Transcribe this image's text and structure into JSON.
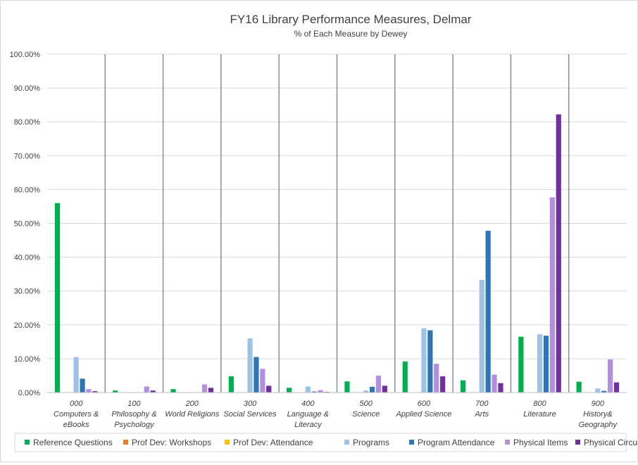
{
  "chart_data": {
    "type": "bar",
    "title": "FY16 Library Performance Measures, Delmar",
    "subtitle": "% of Each Measure by Dewey",
    "xlabel": "",
    "ylabel": "",
    "ylim": [
      0,
      100
    ],
    "yticks": [
      "0.00%",
      "10.00%",
      "20.00%",
      "30.00%",
      "40.00%",
      "50.00%",
      "60.00%",
      "70.00%",
      "80.00%",
      "90.00%",
      "100.00%"
    ],
    "categories": [
      [
        "000",
        "Computers &",
        "eBooks"
      ],
      [
        "100",
        "Philosophy &",
        "Psychology"
      ],
      [
        "200",
        "World Religions"
      ],
      [
        "300",
        "Social Services"
      ],
      [
        "400",
        "Language &",
        "Literacy"
      ],
      [
        "500",
        "Science"
      ],
      [
        "600",
        "Applied Science"
      ],
      [
        "700",
        "Arts"
      ],
      [
        "800",
        "Literature"
      ],
      [
        "900",
        "History&",
        "Geography"
      ]
    ],
    "series": [
      {
        "name": "Reference Questions",
        "color": "#00b050",
        "values": [
          56,
          0.6,
          1,
          4.8,
          1.4,
          3.3,
          9.2,
          3.6,
          16.5,
          3.2
        ]
      },
      {
        "name": "Prof Dev: Workshops",
        "color": "#ed7d31",
        "values": [
          0,
          0,
          0,
          0,
          0,
          0,
          0,
          0,
          0,
          0
        ]
      },
      {
        "name": "Prof Dev: Attendance",
        "color": "#ffc000",
        "values": [
          0,
          0,
          0,
          0,
          0,
          0,
          0,
          0,
          0,
          0
        ]
      },
      {
        "name": "Programs",
        "color": "#9dc3e6",
        "values": [
          10.5,
          0,
          0,
          16,
          1.8,
          0.6,
          19,
          33.3,
          17.2,
          1.2
        ]
      },
      {
        "name": "Program Attendance",
        "color": "#2e75b6",
        "values": [
          4.1,
          0,
          0,
          10.5,
          0.3,
          1.7,
          18.4,
          47.8,
          16.8,
          0.5
        ]
      },
      {
        "name": "Physical Items",
        "color": "#b48fdf",
        "values": [
          1,
          1.8,
          2.4,
          7,
          0.7,
          5,
          8.5,
          5.3,
          57.7,
          9.8
        ]
      },
      {
        "name": "Physical Circulation",
        "color": "#7030a0",
        "values": [
          0.4,
          0.6,
          1.4,
          2,
          0.2,
          2,
          4.8,
          2.8,
          82.2,
          3
        ]
      }
    ]
  }
}
